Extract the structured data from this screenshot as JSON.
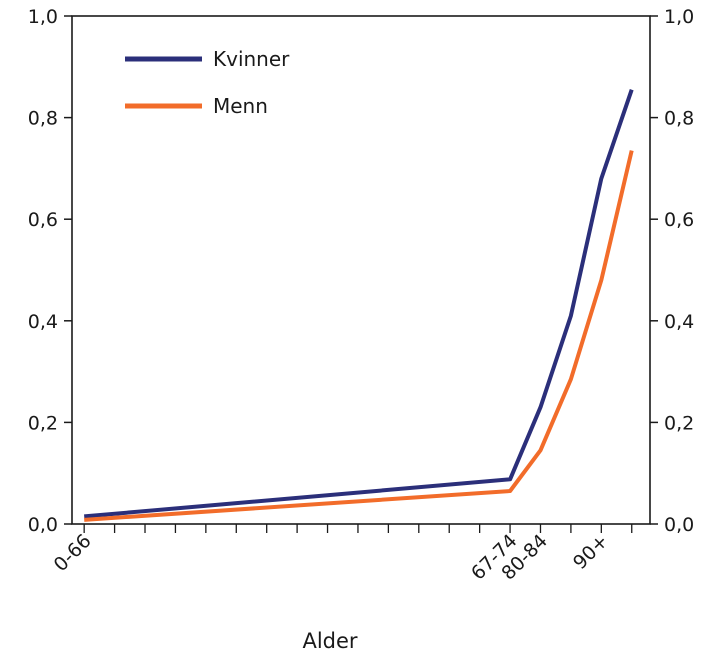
{
  "chart_data": {
    "type": "line",
    "title": "",
    "xlabel": "Alder",
    "ylabel": "",
    "ylim": [
      0,
      1.0
    ],
    "y_ticks": [
      "0,0",
      "0,2",
      "0,4",
      "0,6",
      "0,8",
      "1,0"
    ],
    "y_tick_values": [
      0.0,
      0.2,
      0.4,
      0.6,
      0.8,
      1.0
    ],
    "x_tick_labels": [
      {
        "label": "0-66",
        "age": 0
      },
      {
        "label": "67-74",
        "age": 14
      },
      {
        "label": "80-84",
        "age": 15
      },
      {
        "label": "90+",
        "age": 17
      }
    ],
    "minor_tick_count": 19,
    "series": [
      {
        "name": "Kvinner",
        "color": "#2b2f7a",
        "points": [
          {
            "age": 0,
            "value": 0.015
          },
          {
            "age": 14,
            "value": 0.088
          },
          {
            "age": 15,
            "value": 0.23
          },
          {
            "age": 16,
            "value": 0.41
          },
          {
            "age": 17,
            "value": 0.68
          },
          {
            "age": 18,
            "value": 0.855
          }
        ]
      },
      {
        "name": "Menn",
        "color": "#f26c2a",
        "points": [
          {
            "age": 0,
            "value": 0.008
          },
          {
            "age": 14,
            "value": 0.065
          },
          {
            "age": 15,
            "value": 0.145
          },
          {
            "age": 16,
            "value": 0.285
          },
          {
            "age": 17,
            "value": 0.48
          },
          {
            "age": 18,
            "value": 0.735
          }
        ]
      }
    ],
    "legend_position": "top-left",
    "grid": false
  }
}
